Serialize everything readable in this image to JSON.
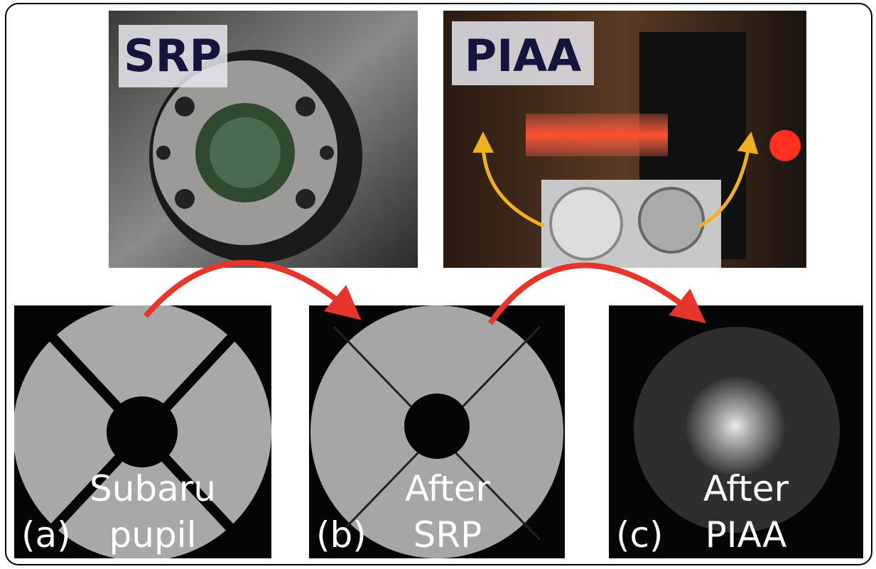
{
  "top_panels": [
    {
      "label": "SRP"
    },
    {
      "label": "PIAA"
    }
  ],
  "bottom_panels": [
    {
      "tag": "(a)",
      "lines": [
        "Subaru",
        "pupil"
      ]
    },
    {
      "tag": "(b)",
      "lines": [
        "After",
        "SRP"
      ]
    },
    {
      "tag": "(c)",
      "lines": [
        "After",
        "PIAA"
      ]
    }
  ]
}
